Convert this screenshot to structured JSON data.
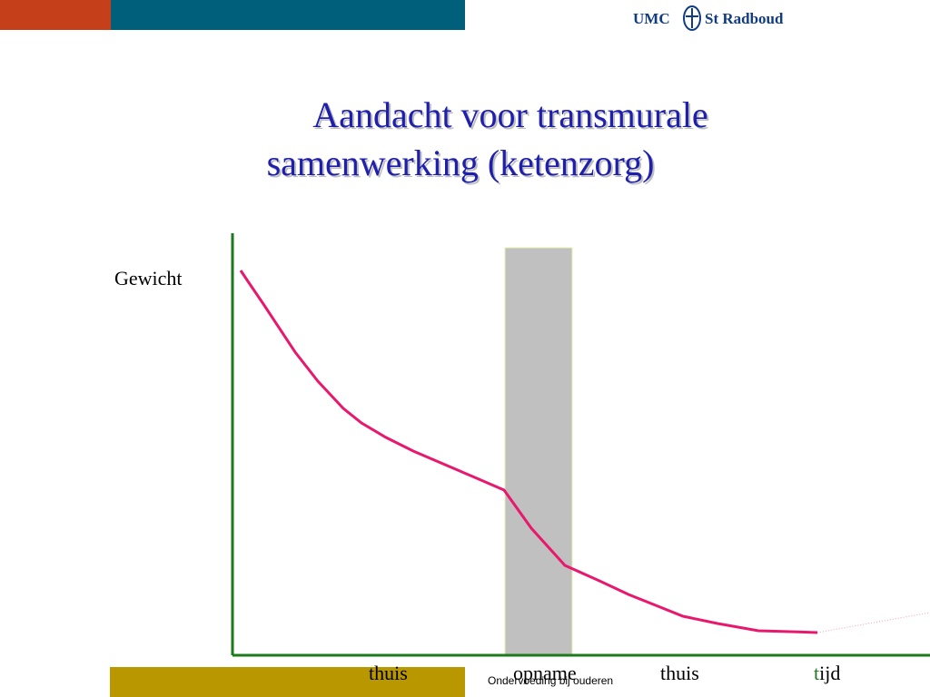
{
  "header": {
    "logo_left": "UMC",
    "logo_right": "St Radboud"
  },
  "title": {
    "line1": "Aandacht voor transmurale",
    "line2": "samenwerking (ketenzorg)"
  },
  "diagram": {
    "y_label": "Gewicht",
    "phases": [
      "thuis",
      "opname",
      "thuis"
    ],
    "x_label": "tijd"
  },
  "footer": "Ondervoeding bij ouderen"
}
